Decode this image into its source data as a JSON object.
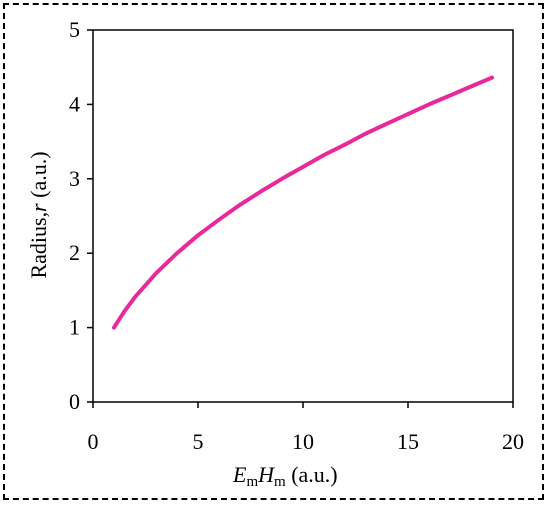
{
  "chart_data": {
    "type": "line",
    "xlabel": {
      "var1": "E",
      "sub1": "m",
      "var2": "H",
      "sub2": "m",
      "unit": " (a.u.)"
    },
    "ylabel": {
      "prefix": "Radius,",
      "var": "r",
      "unit": " (a.u.)"
    },
    "xlim": [
      0,
      20
    ],
    "ylim": [
      0,
      5
    ],
    "xticks": [
      "0",
      "5",
      "10",
      "15",
      "20"
    ],
    "yticks": [
      "0",
      "1",
      "2",
      "3",
      "4",
      "5"
    ],
    "grid": false,
    "series": [
      {
        "color": "#e8299b",
        "x": [
          1,
          1.5,
          2,
          3,
          4,
          5,
          6,
          7,
          8,
          9,
          10,
          11,
          12,
          13,
          14,
          15,
          16,
          17,
          18,
          19
        ],
        "y": [
          1.0,
          1.22,
          1.41,
          1.73,
          2.0,
          2.24,
          2.45,
          2.65,
          2.83,
          3.0,
          3.16,
          3.32,
          3.46,
          3.61,
          3.74,
          3.87,
          4.0,
          4.12,
          4.24,
          4.36
        ]
      }
    ]
  }
}
